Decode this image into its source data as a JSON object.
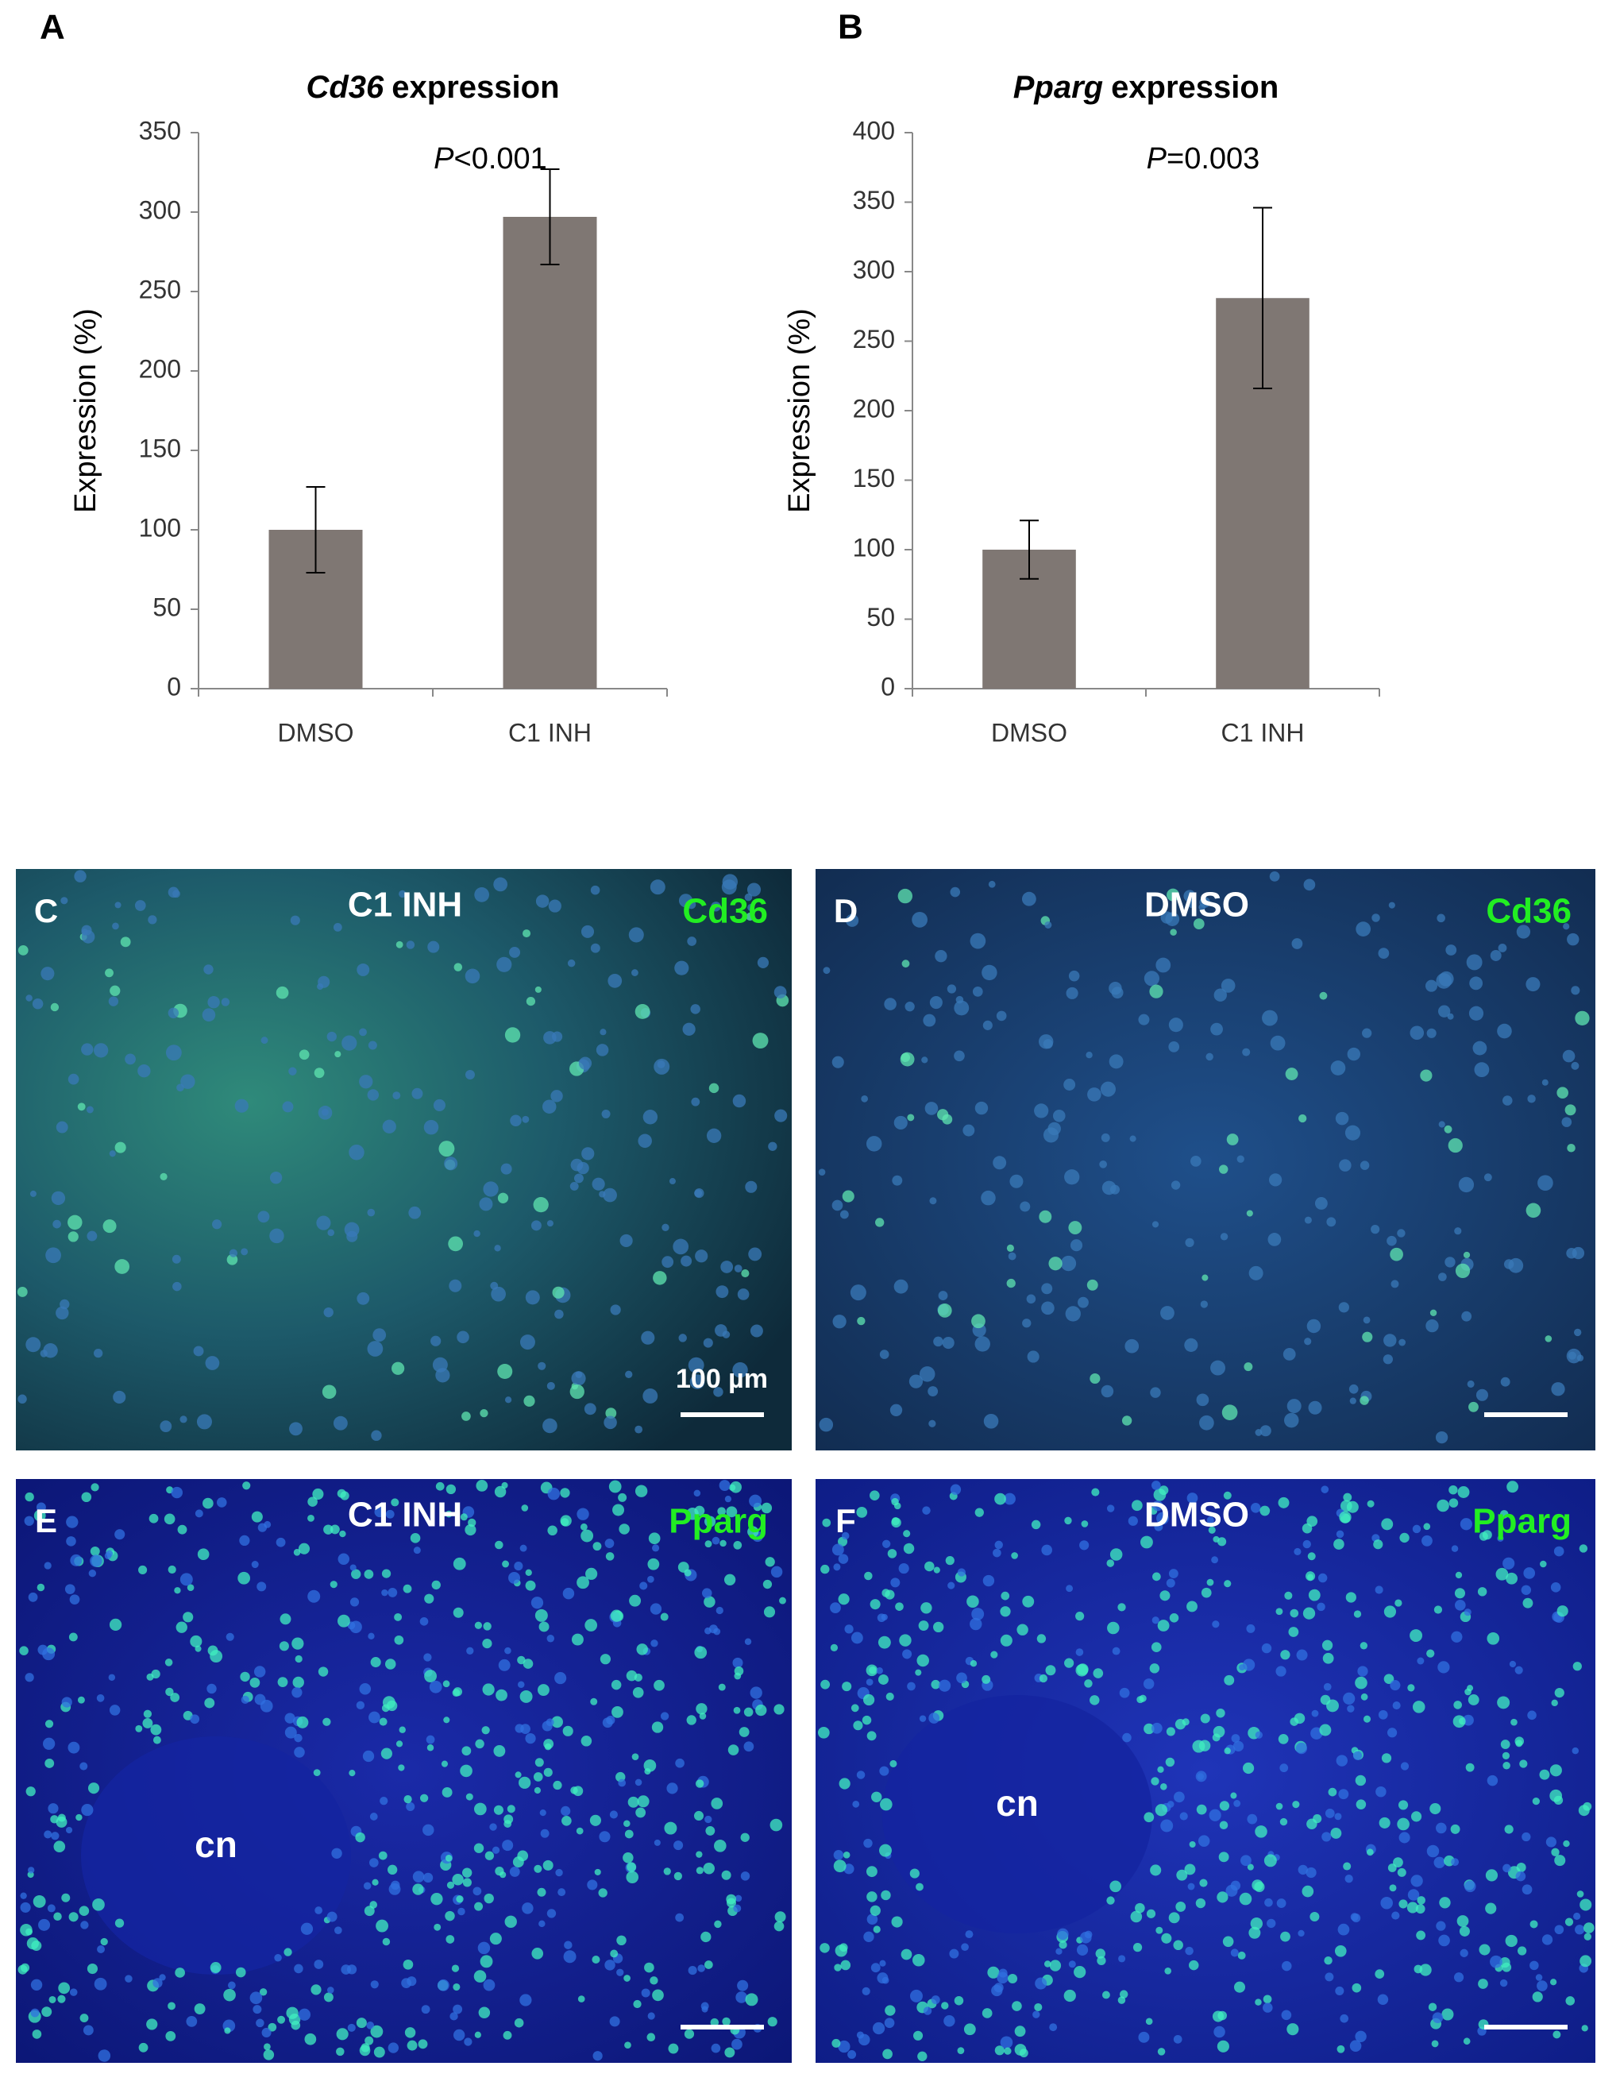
{
  "panels_top": [
    {
      "label": "A"
    },
    {
      "label": "B"
    }
  ],
  "chart_data": [
    {
      "type": "bar",
      "title": {
        "italic": "Cd36",
        "text": "expression"
      },
      "annotation": {
        "italic": "P",
        "text": "<0.001"
      },
      "ylabel": "Expression (%)",
      "categories": [
        "DMSO",
        "C1 INH"
      ],
      "values": [
        100,
        297
      ],
      "errors": [
        27,
        30
      ],
      "color": "#7f7773",
      "ylim": [
        0,
        350
      ],
      "yticks": [
        0,
        50,
        100,
        150,
        200,
        250,
        300,
        350
      ],
      "grid": false
    },
    {
      "type": "bar",
      "title": {
        "italic": "Pparg",
        "text": "expression"
      },
      "annotation": {
        "italic": "P",
        "text": "=0.003"
      },
      "ylabel": "Expression (%)",
      "categories": [
        "DMSO",
        "C1 INH"
      ],
      "values": [
        100,
        281
      ],
      "errors": [
        21,
        65
      ],
      "color": "#7f7773",
      "ylim": [
        0,
        400
      ],
      "yticks": [
        0,
        50,
        100,
        150,
        200,
        250,
        300,
        350,
        400
      ],
      "grid": false
    }
  ],
  "micrographs": [
    {
      "label": "C",
      "condition": "C1 INH",
      "marker": "Cd36",
      "scale_bar": "100 µm"
    },
    {
      "label": "D",
      "condition": "DMSO",
      "marker": "Cd36"
    },
    {
      "label": "E",
      "condition": "C1 INH",
      "marker": "Pparg",
      "region": "cn"
    },
    {
      "label": "F",
      "condition": "DMSO",
      "marker": "Pparg",
      "region": "cn"
    }
  ]
}
